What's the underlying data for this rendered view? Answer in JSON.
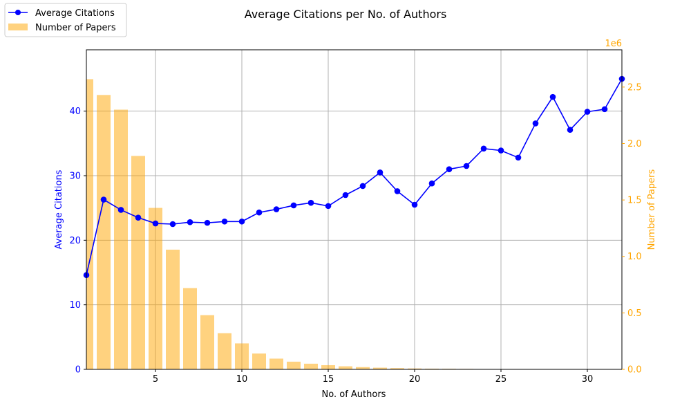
{
  "chart_data": {
    "type": "bar+line",
    "title": "Average Citations per No. of Authors",
    "xlabel": "No. of Authors",
    "ylabel_left": "Average Citations",
    "ylabel_right": "Number of Papers",
    "right_axis_offset_label": "1e6",
    "xlim": [
      1,
      32
    ],
    "ylim_left": [
      0,
      49.5
    ],
    "ylim_right": [
      0,
      2.83
    ],
    "grid": true,
    "legend_position": "top-left",
    "colors": {
      "line": "#0000ff",
      "bars": "#ffa500",
      "bar_opacity": 0.5,
      "right_axis": "#ffa500",
      "left_axis": "#0000ff"
    },
    "x_ticks": [
      5,
      10,
      15,
      20,
      25,
      30
    ],
    "y_left_ticks": [
      0,
      10,
      20,
      30,
      40
    ],
    "y_right_ticks": [
      "0.0",
      "0.5",
      "1.0",
      "1.5",
      "2.0",
      "2.5"
    ],
    "series": [
      {
        "name": "Average Citations",
        "type": "line",
        "axis": "left",
        "x": [
          1,
          2,
          3,
          4,
          5,
          6,
          7,
          8,
          9,
          10,
          11,
          12,
          13,
          14,
          15,
          16,
          17,
          18,
          19,
          20,
          21,
          22,
          23,
          24,
          25,
          26,
          27,
          28,
          29,
          30,
          31,
          32
        ],
        "values": [
          14.6,
          26.3,
          24.7,
          23.5,
          22.6,
          22.5,
          22.8,
          22.7,
          22.9,
          22.9,
          24.3,
          24.8,
          25.4,
          25.8,
          25.3,
          27.0,
          28.4,
          30.5,
          27.6,
          25.5,
          28.8,
          31.0,
          31.5,
          34.2,
          33.9,
          32.8,
          38.1,
          42.2,
          37.1,
          39.9,
          40.3,
          45.0
        ]
      },
      {
        "name": "Number of Papers",
        "type": "bar",
        "axis": "right",
        "unit_multiplier": "1e6",
        "x": [
          1,
          2,
          3,
          4,
          5,
          6,
          7,
          8,
          9,
          10,
          11,
          12,
          13,
          14,
          15,
          16,
          17,
          18,
          19,
          20,
          21,
          22,
          23,
          24,
          25,
          26,
          27,
          28,
          29,
          30,
          31,
          32
        ],
        "values": [
          2.57,
          2.43,
          2.3,
          1.89,
          1.43,
          1.06,
          0.72,
          0.48,
          0.32,
          0.23,
          0.14,
          0.095,
          0.068,
          0.05,
          0.037,
          0.027,
          0.02,
          0.015,
          0.011,
          0.008,
          0.006,
          0.005,
          0.004,
          0.003,
          0.002,
          0.0015,
          0.001,
          0.0008,
          0.0006,
          0.0005,
          0.0004,
          0.0003
        ]
      }
    ]
  }
}
